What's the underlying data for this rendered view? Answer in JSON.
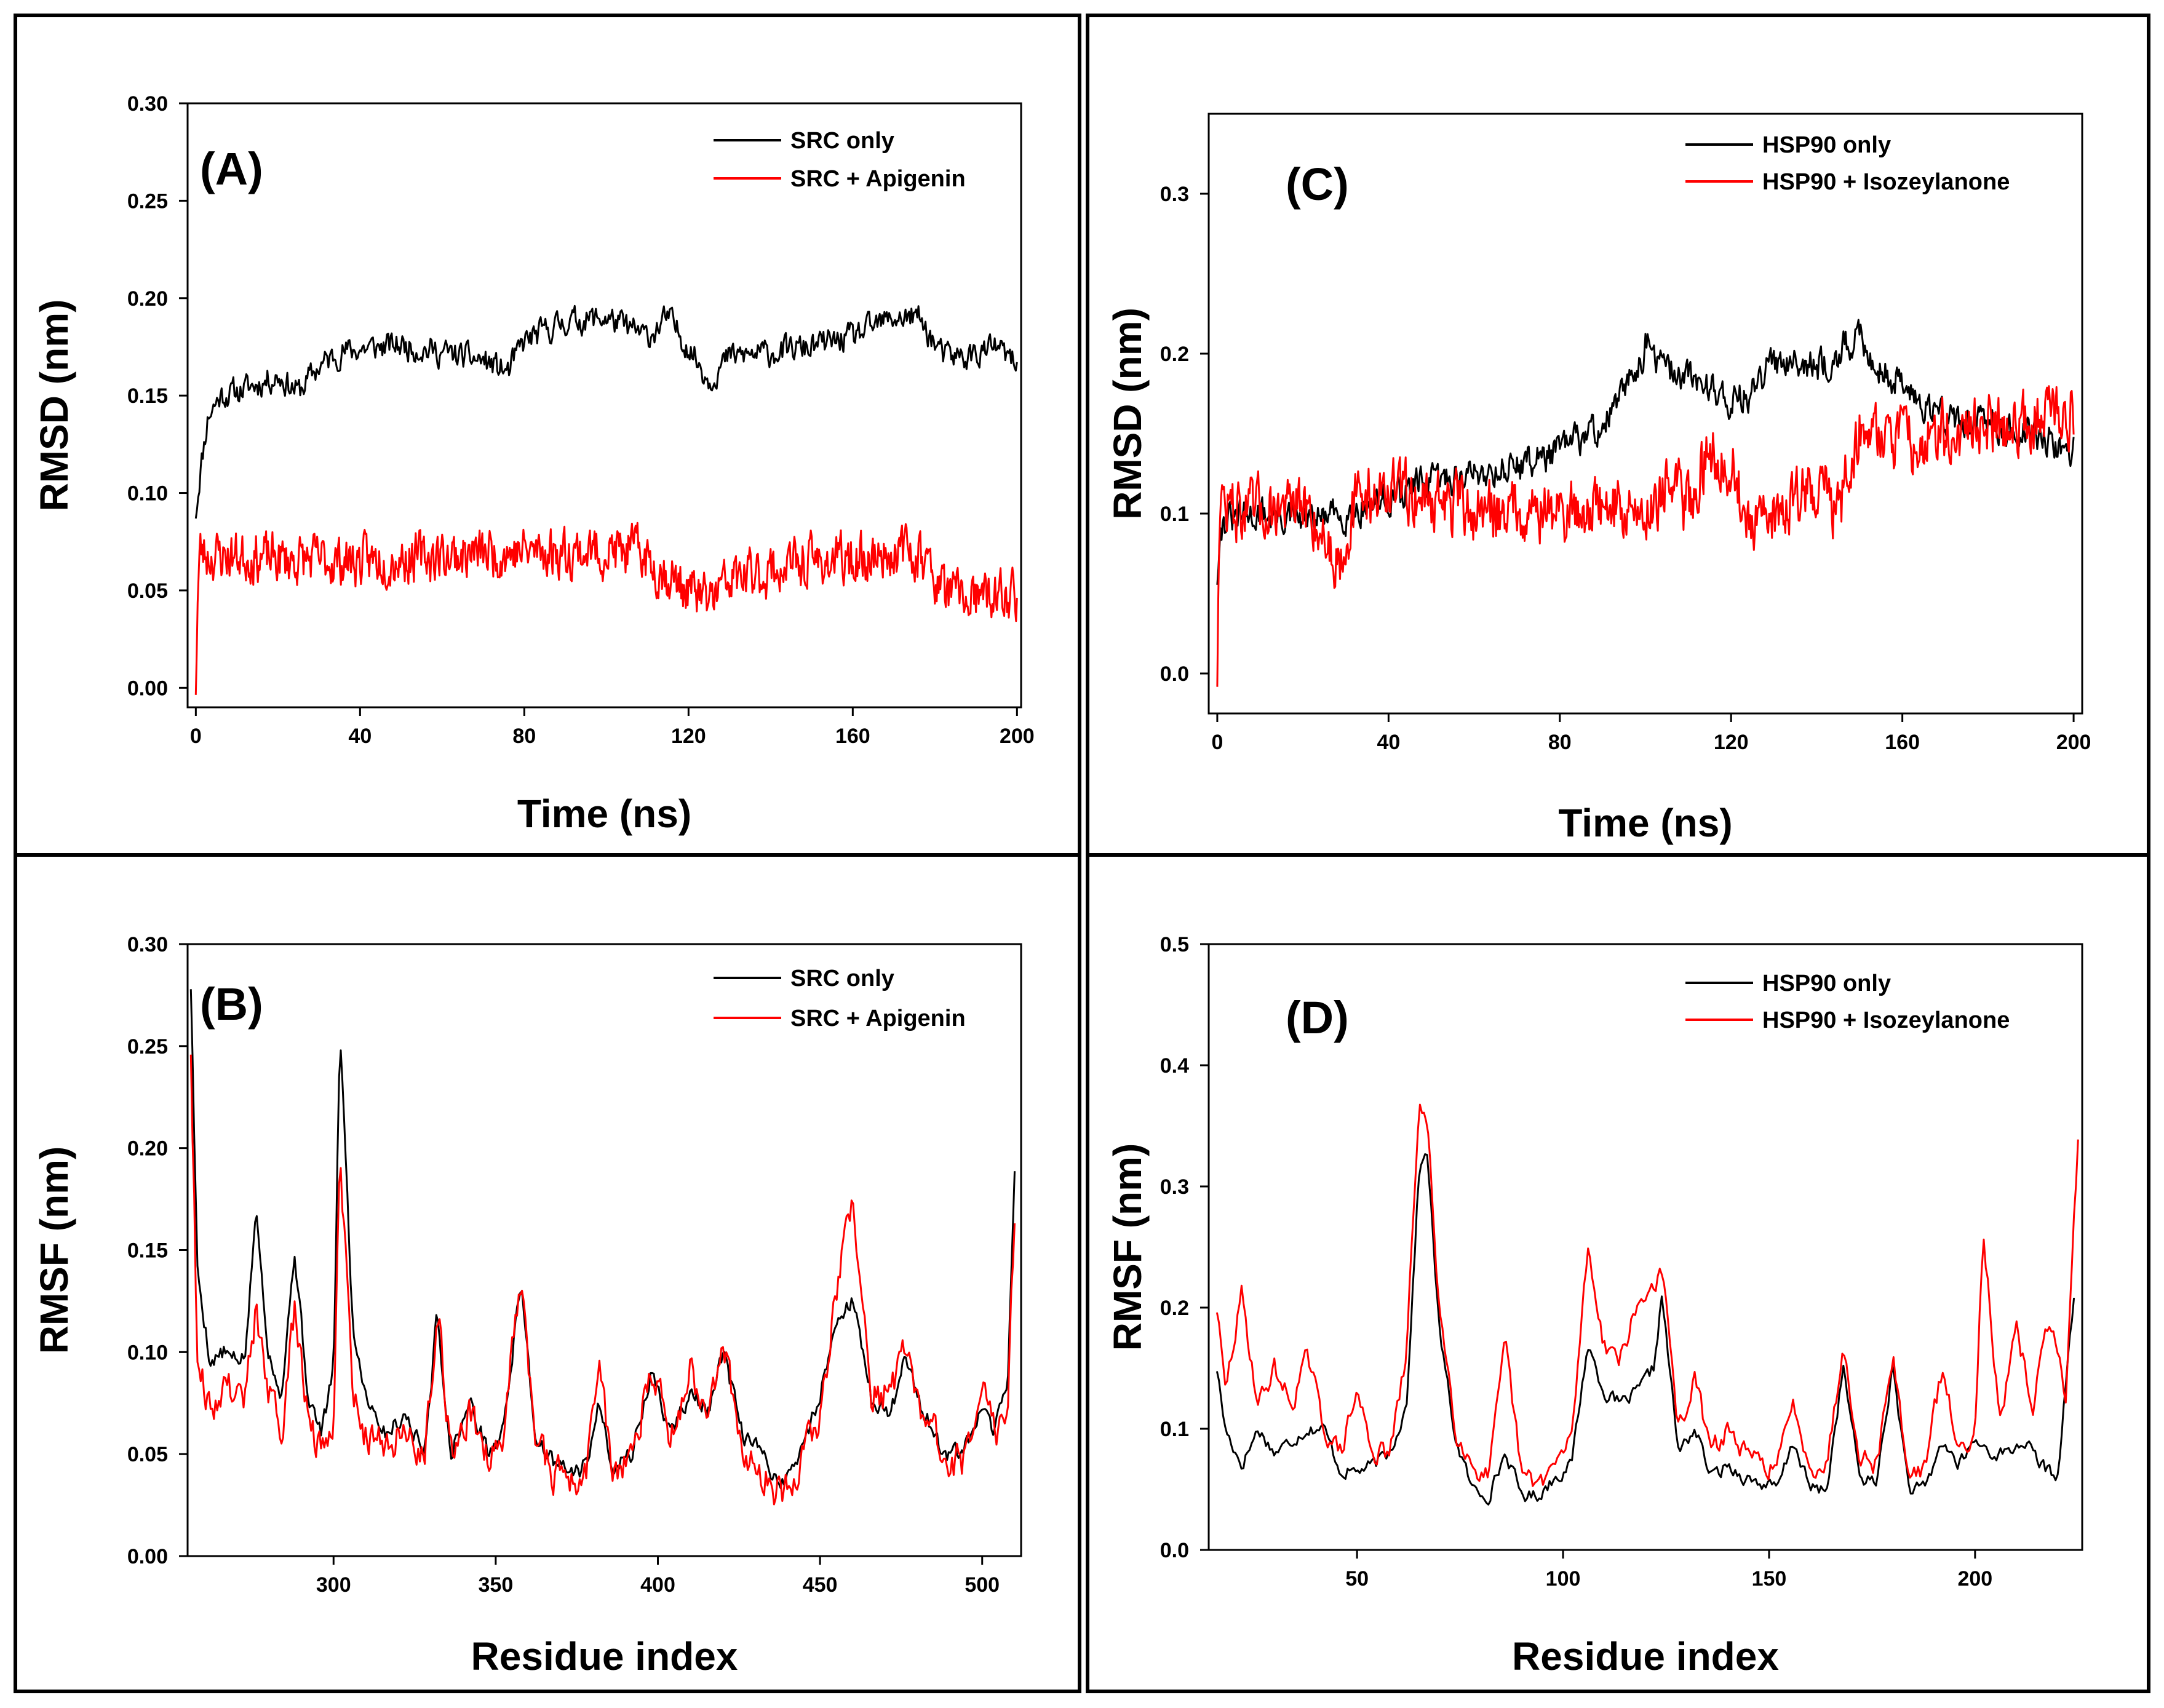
{
  "chart_data": [
    {
      "id": "A",
      "type": "line",
      "panel_label": "(A)",
      "xlabel": "Time (ns)",
      "ylabel": "RMSD (nm)",
      "xlim": [
        -2,
        201
      ],
      "ylim": [
        -0.01,
        0.3
      ],
      "xticks": [
        0,
        40,
        80,
        120,
        160,
        200
      ],
      "xtick_labels": [
        "0",
        "40",
        "80",
        "120",
        "160",
        "200"
      ],
      "yticks": [
        0.0,
        0.05,
        0.1,
        0.15,
        0.2,
        0.25,
        0.3
      ],
      "ytick_labels": [
        "0.00",
        "0.05",
        "0.10",
        "0.15",
        "0.20",
        "0.25",
        "0.30"
      ],
      "legend": [
        "SRC only",
        "SRC + Apigenin"
      ],
      "series": [
        {
          "name": "SRC only",
          "color": "#000000",
          "noise": 0.006,
          "seed": 11,
          "n": 700,
          "x": [
            0,
            1,
            3,
            6,
            10,
            15,
            20,
            25,
            30,
            35,
            40,
            50,
            60,
            70,
            76,
            80,
            90,
            100,
            110,
            115,
            120,
            125,
            130,
            140,
            150,
            160,
            170,
            176,
            182,
            188,
            195,
            200
          ],
          "y": [
            0.09,
            0.11,
            0.14,
            0.15,
            0.152,
            0.156,
            0.16,
            0.152,
            0.165,
            0.172,
            0.174,
            0.176,
            0.172,
            0.168,
            0.162,
            0.178,
            0.188,
            0.19,
            0.18,
            0.19,
            0.175,
            0.158,
            0.17,
            0.172,
            0.175,
            0.18,
            0.19,
            0.19,
            0.17,
            0.17,
            0.175,
            0.165
          ]
        },
        {
          "name": "SRC + Apigenin",
          "color": "#ff0000",
          "noise": 0.011,
          "seed": 23,
          "n": 900,
          "x": [
            0,
            0.5,
            1,
            3,
            10,
            20,
            40,
            60,
            80,
            100,
            108,
            112,
            120,
            125,
            130,
            140,
            150,
            160,
            170,
            176,
            182,
            190,
            200
          ],
          "y": [
            0.002,
            0.05,
            0.07,
            0.068,
            0.068,
            0.066,
            0.065,
            0.068,
            0.07,
            0.07,
            0.07,
            0.062,
            0.05,
            0.045,
            0.055,
            0.06,
            0.065,
            0.065,
            0.07,
            0.07,
            0.05,
            0.045,
            0.048
          ]
        }
      ]
    },
    {
      "id": "B",
      "type": "line",
      "panel_label": "(B)",
      "xlabel": "Residue index",
      "ylabel": "RMSF (nm)",
      "xlim": [
        255,
        512
      ],
      "ylim": [
        0.0,
        0.3
      ],
      "xticks": [
        300,
        350,
        400,
        450,
        500
      ],
      "xtick_labels": [
        "300",
        "350",
        "400",
        "450",
        "500"
      ],
      "yticks": [
        0.0,
        0.05,
        0.1,
        0.15,
        0.2,
        0.25,
        0.3
      ],
      "ytick_labels": [
        "0.00",
        "0.05",
        "0.10",
        "0.15",
        "0.20",
        "0.25",
        "0.30"
      ],
      "legend": [
        "SRC only",
        "SRC + Apigenin"
      ],
      "series": [
        {
          "name": "SRC only",
          "color": "#000000",
          "noise": 0.004,
          "seed": 5,
          "n": 500,
          "x": [
            256,
            258,
            262,
            266,
            270,
            273,
            276,
            280,
            284,
            288,
            292,
            296,
            300,
            302,
            306,
            310,
            316,
            322,
            328,
            332,
            336,
            342,
            348,
            352,
            358,
            362,
            368,
            374,
            378,
            382,
            386,
            392,
            398,
            404,
            410,
            416,
            420,
            426,
            432,
            438,
            444,
            450,
            456,
            460,
            466,
            472,
            476,
            482,
            488,
            494,
            500,
            504,
            508,
            510
          ],
          "y": [
            0.28,
            0.14,
            0.095,
            0.1,
            0.095,
            0.1,
            0.17,
            0.1,
            0.08,
            0.15,
            0.08,
            0.06,
            0.09,
            0.26,
            0.11,
            0.08,
            0.06,
            0.07,
            0.05,
            0.12,
            0.05,
            0.075,
            0.05,
            0.06,
            0.135,
            0.06,
            0.045,
            0.04,
            0.045,
            0.075,
            0.045,
            0.05,
            0.09,
            0.06,
            0.08,
            0.07,
            0.1,
            0.06,
            0.05,
            0.035,
            0.05,
            0.08,
            0.12,
            0.125,
            0.075,
            0.07,
            0.1,
            0.07,
            0.05,
            0.05,
            0.07,
            0.06,
            0.09,
            0.19
          ]
        },
        {
          "name": "SRC + Apigenin",
          "color": "#ff0000",
          "noise": 0.008,
          "seed": 9,
          "n": 500,
          "x": [
            256,
            258,
            262,
            266,
            270,
            273,
            276,
            280,
            284,
            288,
            292,
            296,
            300,
            302,
            306,
            310,
            316,
            322,
            328,
            332,
            336,
            342,
            348,
            352,
            358,
            362,
            368,
            374,
            378,
            382,
            386,
            392,
            398,
            404,
            410,
            416,
            420,
            426,
            432,
            438,
            444,
            450,
            456,
            460,
            466,
            472,
            476,
            482,
            488,
            494,
            500,
            504,
            508,
            510
          ],
          "y": [
            0.25,
            0.1,
            0.07,
            0.085,
            0.08,
            0.08,
            0.12,
            0.08,
            0.06,
            0.12,
            0.07,
            0.05,
            0.07,
            0.2,
            0.08,
            0.06,
            0.055,
            0.06,
            0.05,
            0.125,
            0.05,
            0.07,
            0.05,
            0.06,
            0.14,
            0.06,
            0.04,
            0.035,
            0.04,
            0.1,
            0.04,
            0.05,
            0.09,
            0.06,
            0.09,
            0.07,
            0.11,
            0.05,
            0.04,
            0.03,
            0.045,
            0.07,
            0.14,
            0.17,
            0.08,
            0.08,
            0.1,
            0.07,
            0.05,
            0.045,
            0.08,
            0.06,
            0.08,
            0.17
          ]
        }
      ]
    },
    {
      "id": "C",
      "type": "line",
      "panel_label": "(C)",
      "xlabel": "Time (ns)",
      "ylabel": "RMSD (nm)",
      "xlim": [
        -2,
        202
      ],
      "ylim": [
        -0.025,
        0.35
      ],
      "xticks": [
        0,
        40,
        80,
        120,
        160,
        200
      ],
      "xtick_labels": [
        "0",
        "40",
        "80",
        "120",
        "160",
        "200"
      ],
      "yticks": [
        0.0,
        0.1,
        0.2,
        0.3
      ],
      "ytick_labels": [
        "0.0",
        "0.1",
        "0.2",
        "0.3"
      ],
      "legend": [
        "HSP90 only",
        "HSP90 + Isozeylanone"
      ],
      "series": [
        {
          "name": "HSP90 only",
          "color": "#000000",
          "noise": 0.009,
          "seed": 31,
          "n": 800,
          "x": [
            0,
            0.5,
            2,
            10,
            20,
            30,
            40,
            50,
            60,
            70,
            80,
            90,
            95,
            100,
            105,
            110,
            115,
            120,
            125,
            130,
            135,
            140,
            145,
            150,
            155,
            160,
            170,
            180,
            190,
            200
          ],
          "y": [
            0.06,
            0.09,
            0.095,
            0.1,
            0.095,
            0.1,
            0.11,
            0.12,
            0.125,
            0.13,
            0.14,
            0.155,
            0.175,
            0.205,
            0.19,
            0.185,
            0.18,
            0.17,
            0.175,
            0.195,
            0.2,
            0.19,
            0.2,
            0.21,
            0.19,
            0.18,
            0.16,
            0.155,
            0.15,
            0.14
          ]
        },
        {
          "name": "HSP90 + Isozeylanone",
          "color": "#ff0000",
          "noise": 0.017,
          "seed": 47,
          "n": 900,
          "x": [
            0,
            0.5,
            2,
            8,
            15,
            22,
            28,
            33,
            40,
            50,
            60,
            70,
            80,
            90,
            100,
            105,
            110,
            115,
            120,
            125,
            130,
            135,
            140,
            145,
            150,
            160,
            170,
            180,
            190,
            200
          ],
          "y": [
            0.0,
            0.11,
            0.105,
            0.1,
            0.105,
            0.1,
            0.07,
            0.11,
            0.115,
            0.11,
            0.1,
            0.105,
            0.1,
            0.105,
            0.1,
            0.12,
            0.105,
            0.14,
            0.13,
            0.085,
            0.1,
            0.11,
            0.12,
            0.1,
            0.155,
            0.145,
            0.15,
            0.155,
            0.16,
            0.165
          ]
        }
      ]
    },
    {
      "id": "D",
      "type": "line",
      "panel_label": "(D)",
      "xlabel": "Residue index",
      "ylabel": "RMSF (nm)",
      "xlim": [
        14,
        226
      ],
      "ylim": [
        0.0,
        0.5
      ],
      "xticks": [
        50,
        100,
        150,
        200
      ],
      "xtick_labels": [
        "50",
        "100",
        "150",
        "200"
      ],
      "yticks": [
        0.0,
        0.1,
        0.2,
        0.3,
        0.4,
        0.5
      ],
      "ytick_labels": [
        "0.0",
        "0.1",
        "0.2",
        "0.3",
        "0.4",
        "0.5"
      ],
      "legend": [
        "HSP90 only",
        "HSP90 + Isozeylanone"
      ],
      "series": [
        {
          "name": "HSP90 only",
          "color": "#000000",
          "noise": 0.005,
          "seed": 17,
          "n": 420,
          "x": [
            16,
            18,
            22,
            26,
            30,
            34,
            38,
            42,
            46,
            50,
            54,
            58,
            62,
            65,
            67,
            70,
            74,
            78,
            82,
            86,
            90,
            94,
            98,
            102,
            106,
            110,
            114,
            118,
            122,
            124,
            128,
            132,
            136,
            140,
            144,
            148,
            152,
            156,
            160,
            164,
            168,
            172,
            176,
            180,
            184,
            188,
            192,
            196,
            200,
            204,
            208,
            212,
            216,
            220,
            224
          ],
          "y": [
            0.15,
            0.1,
            0.07,
            0.1,
            0.08,
            0.09,
            0.1,
            0.1,
            0.065,
            0.065,
            0.07,
            0.08,
            0.12,
            0.31,
            0.33,
            0.18,
            0.09,
            0.05,
            0.045,
            0.08,
            0.045,
            0.045,
            0.06,
            0.07,
            0.17,
            0.13,
            0.12,
            0.13,
            0.15,
            0.21,
            0.08,
            0.1,
            0.06,
            0.07,
            0.06,
            0.055,
            0.05,
            0.09,
            0.05,
            0.05,
            0.15,
            0.06,
            0.055,
            0.15,
            0.05,
            0.05,
            0.09,
            0.07,
            0.09,
            0.08,
            0.08,
            0.09,
            0.07,
            0.06,
            0.21
          ]
        },
        {
          "name": "HSP90 + Isozeylanone",
          "color": "#ff0000",
          "noise": 0.008,
          "seed": 29,
          "n": 420,
          "x": [
            16,
            18,
            22,
            26,
            30,
            34,
            38,
            42,
            46,
            50,
            54,
            58,
            62,
            65,
            67,
            70,
            74,
            78,
            82,
            86,
            90,
            94,
            98,
            102,
            106,
            110,
            114,
            118,
            122,
            124,
            128,
            132,
            136,
            140,
            144,
            148,
            152,
            156,
            160,
            164,
            168,
            172,
            176,
            180,
            184,
            188,
            192,
            196,
            200,
            202,
            206,
            210,
            214,
            218,
            222,
            225
          ],
          "y": [
            0.2,
            0.13,
            0.21,
            0.12,
            0.15,
            0.12,
            0.16,
            0.1,
            0.08,
            0.13,
            0.08,
            0.08,
            0.16,
            0.37,
            0.35,
            0.2,
            0.1,
            0.07,
            0.06,
            0.17,
            0.06,
            0.055,
            0.07,
            0.09,
            0.25,
            0.17,
            0.16,
            0.2,
            0.22,
            0.23,
            0.1,
            0.14,
            0.08,
            0.1,
            0.08,
            0.07,
            0.07,
            0.12,
            0.07,
            0.07,
            0.17,
            0.08,
            0.07,
            0.16,
            0.06,
            0.07,
            0.15,
            0.08,
            0.1,
            0.27,
            0.1,
            0.18,
            0.12,
            0.19,
            0.13,
            0.34
          ]
        }
      ]
    }
  ]
}
